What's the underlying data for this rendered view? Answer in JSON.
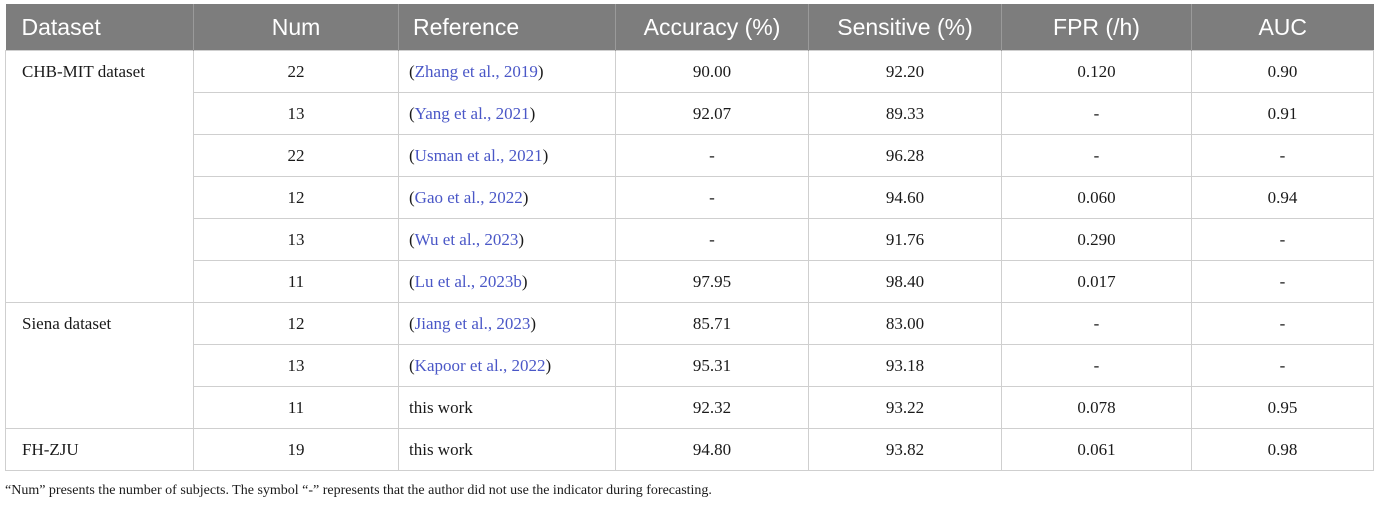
{
  "table": {
    "headers": [
      "Dataset",
      "Num",
      "Reference",
      "Accuracy (%)",
      "Sensitive (%)",
      "FPR (/h)",
      "AUC"
    ],
    "groups": [
      {
        "dataset": "CHB-MIT dataset",
        "rows": [
          {
            "num": "22",
            "ref": "Zhang et al., 2019",
            "acc": "90.00",
            "sens": "92.20",
            "fpr": "0.120",
            "auc": "0.90"
          },
          {
            "num": "13",
            "ref": "Yang et al., 2021",
            "acc": "92.07",
            "sens": "89.33",
            "fpr": "-",
            "auc": "0.91"
          },
          {
            "num": "22",
            "ref": "Usman et al., 2021",
            "acc": "-",
            "sens": "96.28",
            "fpr": "-",
            "auc": "-"
          },
          {
            "num": "12",
            "ref": "Gao et al., 2022",
            "acc": "-",
            "sens": "94.60",
            "fpr": "0.060",
            "auc": "0.94"
          },
          {
            "num": "13",
            "ref": "Wu et al., 2023",
            "acc": "-",
            "sens": "91.76",
            "fpr": "0.290",
            "auc": "-"
          },
          {
            "num": "11",
            "ref": "Lu et al., 2023b",
            "acc": "97.95",
            "sens": "98.40",
            "fpr": "0.017",
            "auc": "-"
          }
        ]
      },
      {
        "dataset": "Siena dataset",
        "rows": [
          {
            "num": "12",
            "ref": "Jiang et al., 2023",
            "acc": "85.71",
            "sens": "83.00",
            "fpr": "-",
            "auc": "-"
          },
          {
            "num": "13",
            "ref": "Kapoor et al., 2022",
            "acc": "95.31",
            "sens": "93.18",
            "fpr": "-",
            "auc": "-"
          },
          {
            "num": "11",
            "ref_plain": "this work",
            "acc": "92.32",
            "sens": "93.22",
            "fpr": "0.078",
            "auc": "0.95"
          }
        ]
      },
      {
        "dataset": "FH-ZJU",
        "rows": [
          {
            "num": "19",
            "ref_plain": "this work",
            "acc": "94.80",
            "sens": "93.82",
            "fpr": "0.061",
            "auc": "0.98"
          }
        ]
      }
    ]
  },
  "footnote": "“Num” presents the number of subjects. The symbol “-” represents that the author did not use the indicator during forecasting.",
  "colors": {
    "header_bg": "#7d7d7d",
    "link": "#4a57c7",
    "border": "#cfcfcf"
  }
}
